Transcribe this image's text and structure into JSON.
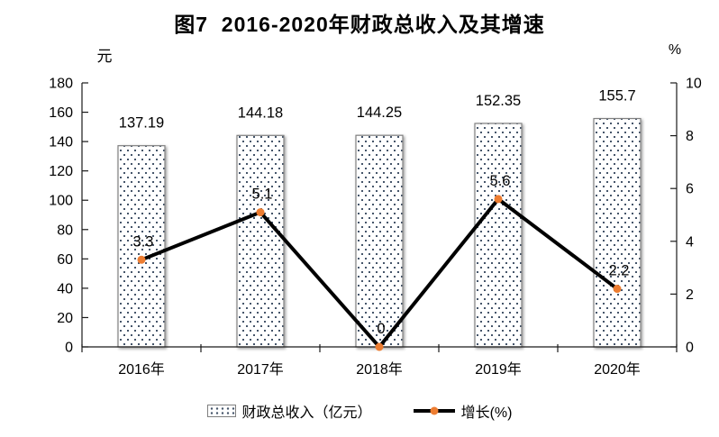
{
  "chart_data": {
    "type": "combo-bar-line",
    "title": "图7  2016-2020年财政总收入及其增速",
    "categories": [
      "2016年",
      "2017年",
      "2018年",
      "2019年",
      "2020年"
    ],
    "series": [
      {
        "name": "财政总收入（亿元）",
        "type": "bar",
        "axis": "left",
        "values": [
          137.19,
          144.18,
          144.25,
          152.35,
          155.7
        ]
      },
      {
        "name": "增长(%)",
        "type": "line",
        "axis": "right",
        "values": [
          3.3,
          5.1,
          0,
          5.6,
          2.2
        ]
      }
    ],
    "left_axis": {
      "unit": "元",
      "min": 0,
      "max": 180,
      "step": 20,
      "tick_labels": [
        "180",
        "160",
        "140",
        "120",
        "100",
        "80",
        "60",
        "40",
        "20",
        "0"
      ]
    },
    "right_axis": {
      "unit": "%",
      "min": 0,
      "max": 10,
      "step": 2,
      "tick_labels": [
        "10",
        "8",
        "6",
        "4",
        "2",
        "0"
      ]
    },
    "grid": false,
    "legend_position": "bottom",
    "colors": {
      "bar_fill_dot": "#44546A",
      "bar_border": "#808080",
      "line": "#000000",
      "marker": "#ED7D31",
      "axis": "#1A1A1A",
      "text": "#000000",
      "background": "#FFFFFF"
    }
  }
}
